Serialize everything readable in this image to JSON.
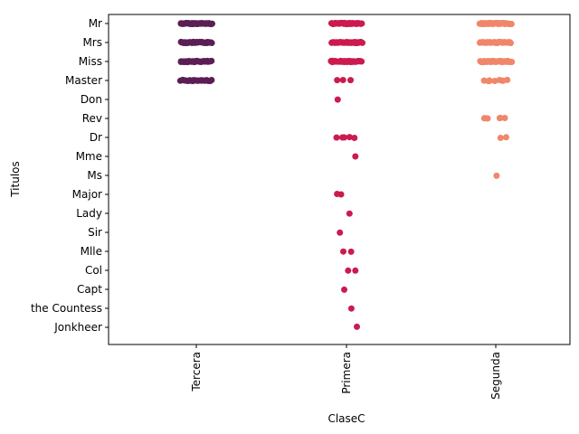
{
  "chart_data": {
    "type": "scatter",
    "title": "",
    "xlabel": "ClaseC",
    "ylabel": "Titulos",
    "categories": [
      "Tercera",
      "Primera",
      "Segunda"
    ],
    "titles": [
      "Mr",
      "Mrs",
      "Miss",
      "Master",
      "Don",
      "Rev",
      "Dr",
      "Mme",
      "Ms",
      "Major",
      "Lady",
      "Sir",
      "Mlle",
      "Col",
      "Capt",
      "the Countess",
      "Jonkheer"
    ],
    "colors": {
      "Tercera": "#5b1f55",
      "Primera": "#cb1b4f",
      "Segunda": "#f0866a"
    },
    "grid": false,
    "legend": "none",
    "series": [
      {
        "category": "Tercera",
        "points": [
          {
            "title": "Mr",
            "count": 40
          },
          {
            "title": "Mrs",
            "count": 40
          },
          {
            "title": "Miss",
            "count": 40
          },
          {
            "title": "Master",
            "count": 30
          }
        ]
      },
      {
        "category": "Primera",
        "points": [
          {
            "title": "Mr",
            "count": 40
          },
          {
            "title": "Mrs",
            "count": 40
          },
          {
            "title": "Miss",
            "count": 40
          },
          {
            "title": "Master",
            "count": 3
          },
          {
            "title": "Don",
            "count": 1
          },
          {
            "title": "Dr",
            "count": 5
          },
          {
            "title": "Mme",
            "count": 1
          },
          {
            "title": "Major",
            "count": 2
          },
          {
            "title": "Lady",
            "count": 1
          },
          {
            "title": "Sir",
            "count": 1
          },
          {
            "title": "Mlle",
            "count": 2
          },
          {
            "title": "Col",
            "count": 2
          },
          {
            "title": "Capt",
            "count": 1
          },
          {
            "title": "the Countess",
            "count": 1
          },
          {
            "title": "Jonkheer",
            "count": 1
          }
        ]
      },
      {
        "category": "Segunda",
        "points": [
          {
            "title": "Mr",
            "count": 40
          },
          {
            "title": "Mrs",
            "count": 40
          },
          {
            "title": "Miss",
            "count": 40
          },
          {
            "title": "Master",
            "count": 9
          },
          {
            "title": "Rev",
            "count": 6
          },
          {
            "title": "Dr",
            "count": 2
          },
          {
            "title": "Ms",
            "count": 1
          }
        ]
      }
    ]
  }
}
